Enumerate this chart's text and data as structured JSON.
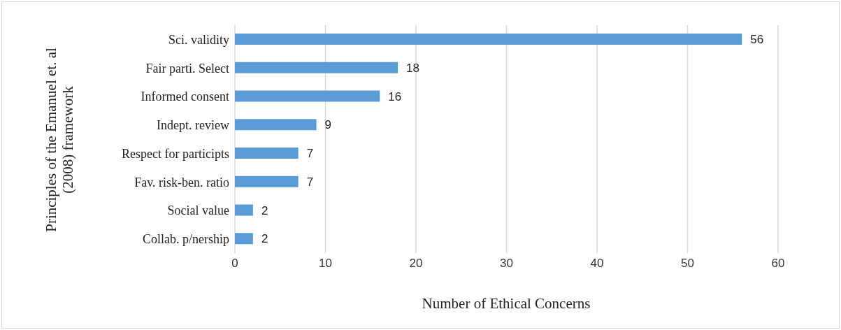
{
  "chart_data": {
    "type": "bar",
    "orientation": "horizontal",
    "categories": [
      "Sci. validity",
      "Fair parti. Select",
      "Informed consent",
      "Indept.  review",
      "Respect for participts",
      "Fav. risk-ben. ratio",
      "Social value",
      "Collab. p/nership"
    ],
    "values": [
      56,
      18,
      16,
      9,
      7,
      7,
      2,
      2
    ],
    "color": "#5b9bd5",
    "xlim": [
      0,
      60
    ],
    "xticks": [
      0,
      10,
      20,
      30,
      40,
      50,
      60
    ],
    "xlabel": "Number of Ethical Concerns",
    "ylabel": "Principles of the Emanuel et. al (2008)  framework",
    "grid": "x",
    "data_labels": true
  }
}
